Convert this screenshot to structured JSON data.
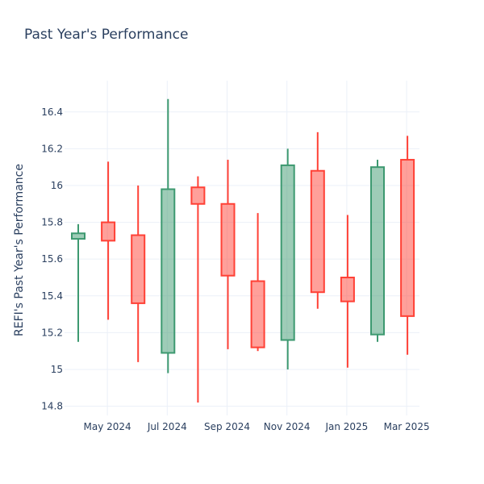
{
  "chart_data": {
    "type": "candlestick",
    "title": "Past Year's Performance",
    "xlabel": "",
    "ylabel": "REFI's Past Year's Performance",
    "ylim": [
      14.75,
      16.57
    ],
    "y_ticks": [
      14.8,
      15,
      15.2,
      15.4,
      15.6,
      15.8,
      16,
      16.2,
      16.4
    ],
    "y_tick_labels": [
      "14.8",
      "15",
      "15.2",
      "15.4",
      "15.6",
      "15.8",
      "16",
      "16.2",
      "16.4"
    ],
    "x_ticks": [
      "May 2024",
      "Jul 2024",
      "Sep 2024",
      "Nov 2024",
      "Jan 2025",
      "Mar 2025"
    ],
    "grid": true,
    "increasing_color": "#3d9970",
    "decreasing_color": "#ff4136",
    "candles": [
      {
        "open": 15.71,
        "high": 15.79,
        "low": 15.15,
        "close": 15.74
      },
      {
        "open": 15.8,
        "high": 16.13,
        "low": 15.27,
        "close": 15.7
      },
      {
        "open": 15.73,
        "high": 16.0,
        "low": 15.04,
        "close": 15.36
      },
      {
        "open": 15.09,
        "high": 16.47,
        "low": 14.98,
        "close": 15.98
      },
      {
        "open": 15.99,
        "high": 16.05,
        "low": 14.82,
        "close": 15.9
      },
      {
        "open": 15.9,
        "high": 16.14,
        "low": 15.11,
        "close": 15.51
      },
      {
        "open": 15.48,
        "high": 15.85,
        "low": 15.1,
        "close": 15.12
      },
      {
        "open": 15.16,
        "high": 16.2,
        "low": 15.0,
        "close": 16.11
      },
      {
        "open": 16.08,
        "high": 16.29,
        "low": 15.33,
        "close": 15.42
      },
      {
        "open": 15.5,
        "high": 15.84,
        "low": 15.01,
        "close": 15.37
      },
      {
        "open": 15.19,
        "high": 16.14,
        "low": 15.15,
        "close": 16.1
      },
      {
        "open": 16.14,
        "high": 16.27,
        "low": 15.08,
        "close": 15.29
      }
    ]
  }
}
